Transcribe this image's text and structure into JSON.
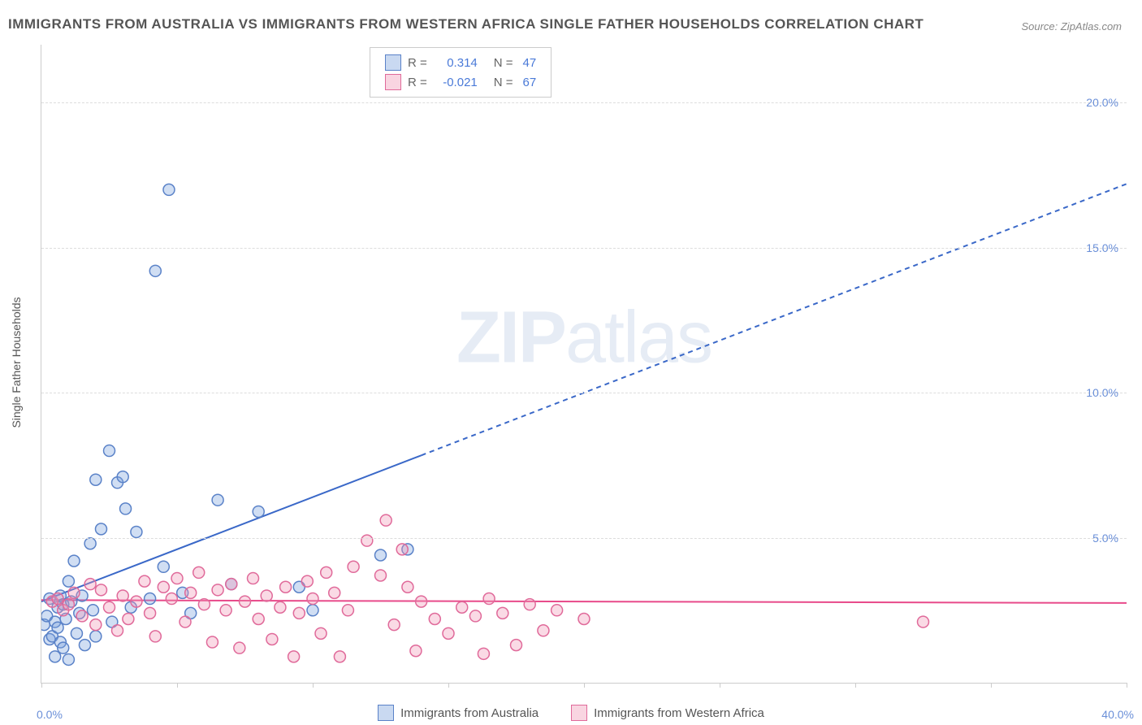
{
  "title": "IMMIGRANTS FROM AUSTRALIA VS IMMIGRANTS FROM WESTERN AFRICA SINGLE FATHER HOUSEHOLDS CORRELATION CHART",
  "source": "Source: ZipAtlas.com",
  "ylabel": "Single Father Households",
  "watermark_a": "ZIP",
  "watermark_b": "atlas",
  "chart": {
    "type": "scatter",
    "xlim": [
      0,
      40
    ],
    "ylim": [
      0,
      22
    ],
    "yticks": [
      5,
      10,
      15,
      20
    ],
    "ytick_labels": [
      "5.0%",
      "10.0%",
      "15.0%",
      "20.0%"
    ],
    "xticks": [
      0,
      5,
      10,
      15,
      20,
      25,
      30,
      35,
      40
    ],
    "x_origin": "0.0%",
    "x_end": "40.0%",
    "grid_color": "#dddddd",
    "background_color": "#ffffff",
    "marker_radius": 7,
    "marker_stroke_width": 1.5,
    "series": [
      {
        "name": "Immigrants from Australia",
        "fill": "rgba(120,160,220,0.35)",
        "stroke": "#5a82c8",
        "r_label": "R =",
        "r": "0.314",
        "n_label": "N =",
        "n": "47",
        "trend": {
          "x1": 0,
          "y1": 2.8,
          "x2": 40,
          "y2": 17.2,
          "solid_until_x": 14,
          "color": "#3a68c8",
          "width": 2
        },
        "data": [
          [
            0.1,
            2.0
          ],
          [
            0.2,
            2.3
          ],
          [
            0.3,
            1.5
          ],
          [
            0.3,
            2.9
          ],
          [
            0.4,
            1.6
          ],
          [
            0.5,
            0.9
          ],
          [
            0.5,
            2.1
          ],
          [
            0.6,
            1.9
          ],
          [
            0.6,
            2.6
          ],
          [
            0.7,
            3.0
          ],
          [
            0.7,
            1.4
          ],
          [
            0.8,
            2.7
          ],
          [
            0.8,
            1.2
          ],
          [
            0.9,
            2.2
          ],
          [
            1.0,
            3.5
          ],
          [
            1.0,
            0.8
          ],
          [
            1.1,
            2.8
          ],
          [
            1.2,
            4.2
          ],
          [
            1.3,
            1.7
          ],
          [
            1.4,
            2.4
          ],
          [
            1.5,
            3.0
          ],
          [
            1.6,
            1.3
          ],
          [
            1.8,
            4.8
          ],
          [
            1.9,
            2.5
          ],
          [
            2.0,
            7.0
          ],
          [
            2.0,
            1.6
          ],
          [
            2.2,
            5.3
          ],
          [
            2.5,
            8.0
          ],
          [
            2.6,
            2.1
          ],
          [
            2.8,
            6.9
          ],
          [
            3.0,
            7.1
          ],
          [
            3.1,
            6.0
          ],
          [
            3.3,
            2.6
          ],
          [
            3.5,
            5.2
          ],
          [
            4.0,
            2.9
          ],
          [
            4.2,
            14.2
          ],
          [
            4.5,
            4.0
          ],
          [
            4.7,
            17.0
          ],
          [
            5.2,
            3.1
          ],
          [
            5.5,
            2.4
          ],
          [
            6.5,
            6.3
          ],
          [
            7.0,
            3.4
          ],
          [
            8.0,
            5.9
          ],
          [
            9.5,
            3.3
          ],
          [
            10.0,
            2.5
          ],
          [
            12.5,
            4.4
          ],
          [
            13.5,
            4.6
          ]
        ]
      },
      {
        "name": "Immigrants from Western Africa",
        "fill": "rgba(240,150,180,0.35)",
        "stroke": "#e06a9a",
        "r_label": "R =",
        "r": "-0.021",
        "n_label": "N =",
        "n": "67",
        "trend": {
          "x1": 0,
          "y1": 2.85,
          "x2": 40,
          "y2": 2.75,
          "solid_until_x": 40,
          "color": "#e84a8a",
          "width": 2
        },
        "data": [
          [
            0.4,
            2.8
          ],
          [
            0.6,
            2.9
          ],
          [
            0.8,
            2.5
          ],
          [
            1.0,
            2.7
          ],
          [
            1.2,
            3.1
          ],
          [
            1.5,
            2.3
          ],
          [
            1.8,
            3.4
          ],
          [
            2.0,
            2.0
          ],
          [
            2.2,
            3.2
          ],
          [
            2.5,
            2.6
          ],
          [
            2.8,
            1.8
          ],
          [
            3.0,
            3.0
          ],
          [
            3.2,
            2.2
          ],
          [
            3.5,
            2.8
          ],
          [
            3.8,
            3.5
          ],
          [
            4.0,
            2.4
          ],
          [
            4.2,
            1.6
          ],
          [
            4.5,
            3.3
          ],
          [
            4.8,
            2.9
          ],
          [
            5.0,
            3.6
          ],
          [
            5.3,
            2.1
          ],
          [
            5.5,
            3.1
          ],
          [
            5.8,
            3.8
          ],
          [
            6.0,
            2.7
          ],
          [
            6.3,
            1.4
          ],
          [
            6.5,
            3.2
          ],
          [
            6.8,
            2.5
          ],
          [
            7.0,
            3.4
          ],
          [
            7.3,
            1.2
          ],
          [
            7.5,
            2.8
          ],
          [
            7.8,
            3.6
          ],
          [
            8.0,
            2.2
          ],
          [
            8.3,
            3.0
          ],
          [
            8.5,
            1.5
          ],
          [
            8.8,
            2.6
          ],
          [
            9.0,
            3.3
          ],
          [
            9.3,
            0.9
          ],
          [
            9.5,
            2.4
          ],
          [
            9.8,
            3.5
          ],
          [
            10.0,
            2.9
          ],
          [
            10.3,
            1.7
          ],
          [
            10.5,
            3.8
          ],
          [
            10.8,
            3.1
          ],
          [
            11.0,
            0.9
          ],
          [
            11.3,
            2.5
          ],
          [
            11.5,
            4.0
          ],
          [
            12.0,
            4.9
          ],
          [
            12.5,
            3.7
          ],
          [
            12.7,
            5.6
          ],
          [
            13.0,
            2.0
          ],
          [
            13.3,
            4.6
          ],
          [
            13.5,
            3.3
          ],
          [
            13.8,
            1.1
          ],
          [
            14.0,
            2.8
          ],
          [
            14.5,
            2.2
          ],
          [
            15.0,
            1.7
          ],
          [
            15.5,
            2.6
          ],
          [
            16.0,
            2.3
          ],
          [
            16.3,
            1.0
          ],
          [
            16.5,
            2.9
          ],
          [
            17.0,
            2.4
          ],
          [
            17.5,
            1.3
          ],
          [
            18.0,
            2.7
          ],
          [
            18.5,
            1.8
          ],
          [
            19.0,
            2.5
          ],
          [
            20.0,
            2.2
          ],
          [
            32.5,
            2.1
          ]
        ]
      }
    ]
  },
  "legend": {
    "a_label": "Immigrants from Australia",
    "b_label": "Immigrants from Western Africa"
  }
}
